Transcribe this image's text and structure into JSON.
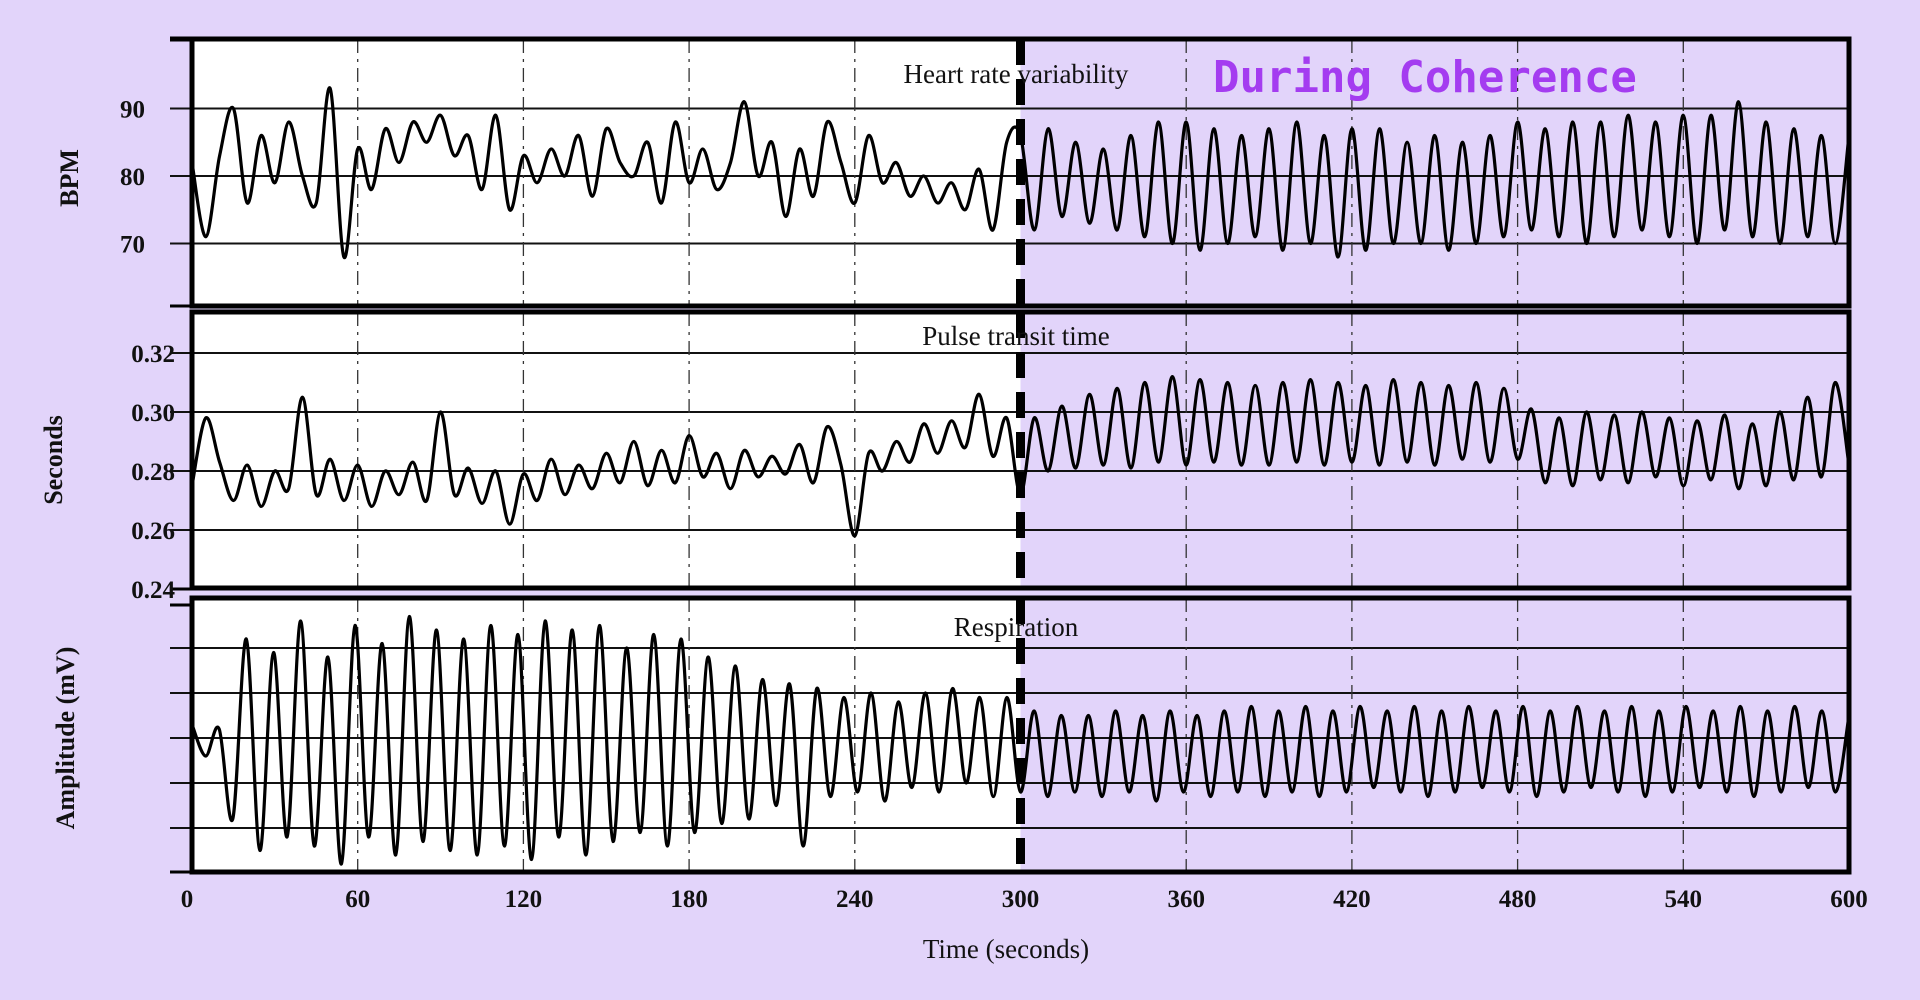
{
  "annotation": {
    "text": "During Coherence",
    "color": "#a43cf0"
  },
  "colors": {
    "background": "#e2d4fa",
    "before_region": "#ffffff",
    "after_region": "#e2d4fa",
    "trace": "#000000"
  },
  "chart_data": [
    {
      "type": "line",
      "title": "Heart rate variability",
      "ylabel": "BPM",
      "xlabel": "Time (seconds)",
      "xlim": [
        0,
        600
      ],
      "ylim": [
        60,
        100
      ],
      "yticks": [
        "70",
        "80",
        "90"
      ],
      "xticks": [
        "0",
        "60",
        "120",
        "180",
        "240",
        "300",
        "360",
        "420",
        "480",
        "540",
        "600"
      ],
      "marker_x": 300,
      "grid": true,
      "values": [
        82,
        71,
        83,
        90,
        76,
        86,
        79,
        88,
        80,
        76,
        93,
        68,
        84,
        78,
        87,
        82,
        88,
        85,
        89,
        83,
        86,
        78,
        89,
        75,
        83,
        79,
        84,
        80,
        86,
        77,
        87,
        82,
        80,
        85,
        76,
        88,
        79,
        84,
        78,
        82,
        91,
        80,
        85,
        74,
        84,
        77,
        88,
        82,
        76,
        86,
        79,
        82,
        77,
        80,
        76,
        79,
        75,
        81,
        72,
        85,
        86,
        72,
        87,
        74,
        85,
        73,
        84,
        72,
        86,
        71,
        88,
        70,
        88,
        69,
        87,
        70,
        86,
        71,
        87,
        69,
        88,
        70,
        86,
        68,
        87,
        69,
        87,
        70,
        85,
        70,
        86,
        69,
        85,
        70,
        86,
        71,
        88,
        72,
        87,
        71,
        88,
        70,
        88,
        71,
        89,
        72,
        88,
        71,
        89,
        70,
        89,
        72,
        91,
        71,
        88,
        70,
        87,
        71,
        86,
        70,
        86
      ]
    },
    {
      "type": "line",
      "title": "Pulse transit time",
      "ylabel": "Seconds",
      "xlim": [
        0,
        600
      ],
      "ylim": [
        0.24,
        0.33
      ],
      "yticks": [
        "0.24",
        "0.26",
        "0.28",
        "0.30",
        "0.32"
      ],
      "marker_x": 300,
      "grid": true,
      "values": [
        0.275,
        0.298,
        0.283,
        0.27,
        0.282,
        0.268,
        0.28,
        0.274,
        0.305,
        0.272,
        0.284,
        0.27,
        0.282,
        0.268,
        0.28,
        0.272,
        0.283,
        0.27,
        0.3,
        0.272,
        0.281,
        0.269,
        0.28,
        0.262,
        0.279,
        0.27,
        0.284,
        0.272,
        0.282,
        0.274,
        0.286,
        0.276,
        0.29,
        0.275,
        0.287,
        0.276,
        0.292,
        0.278,
        0.286,
        0.274,
        0.287,
        0.278,
        0.285,
        0.279,
        0.289,
        0.276,
        0.295,
        0.282,
        0.258,
        0.286,
        0.28,
        0.29,
        0.283,
        0.296,
        0.286,
        0.297,
        0.288,
        0.306,
        0.285,
        0.298,
        0.272,
        0.298,
        0.28,
        0.302,
        0.281,
        0.306,
        0.282,
        0.308,
        0.281,
        0.31,
        0.283,
        0.312,
        0.282,
        0.311,
        0.283,
        0.31,
        0.282,
        0.309,
        0.282,
        0.31,
        0.283,
        0.311,
        0.282,
        0.31,
        0.283,
        0.309,
        0.282,
        0.311,
        0.283,
        0.31,
        0.282,
        0.309,
        0.284,
        0.31,
        0.283,
        0.308,
        0.284,
        0.301,
        0.276,
        0.298,
        0.275,
        0.3,
        0.277,
        0.299,
        0.276,
        0.3,
        0.278,
        0.298,
        0.275,
        0.297,
        0.277,
        0.299,
        0.274,
        0.296,
        0.275,
        0.3,
        0.277,
        0.305,
        0.278,
        0.31,
        0.282
      ]
    },
    {
      "type": "line",
      "title": "Respiration",
      "ylabel": "Amplitude (mV)",
      "xlim": [
        0,
        600
      ],
      "ylim": [
        -3,
        3
      ],
      "marker_x": 300,
      "grid": true,
      "values": [
        0.3,
        -0.4,
        0.2,
        -1.8,
        2.2,
        -2.5,
        1.9,
        -2.2,
        2.6,
        -2.4,
        1.8,
        -2.8,
        2.5,
        -2.2,
        2.1,
        -2.6,
        2.7,
        -2.3,
        2.4,
        -2.5,
        2.2,
        -2.6,
        2.5,
        -2.4,
        2.3,
        -2.7,
        2.6,
        -2.2,
        2.4,
        -2.6,
        2.5,
        -2.3,
        2.0,
        -2.1,
        2.3,
        -2.4,
        2.2,
        -2.1,
        1.8,
        -1.9,
        1.6,
        -1.8,
        1.3,
        -1.5,
        1.2,
        -2.4,
        1.1,
        -1.3,
        0.9,
        -1.2,
        1.0,
        -1.4,
        0.8,
        -1.1,
        1.0,
        -1.2,
        1.1,
        -1.0,
        0.9,
        -1.3,
        0.9,
        -1.2,
        0.6,
        -1.3,
        0.5,
        -1.2,
        0.5,
        -1.3,
        0.6,
        -1.2,
        0.5,
        -1.4,
        0.6,
        -1.2,
        0.5,
        -1.3,
        0.6,
        -1.2,
        0.7,
        -1.3,
        0.6,
        -1.2,
        0.7,
        -1.3,
        0.6,
        -1.2,
        0.7,
        -1.1,
        0.6,
        -1.2,
        0.7,
        -1.3,
        0.6,
        -1.2,
        0.7,
        -1.1,
        0.6,
        -1.2,
        0.7,
        -1.3,
        0.6,
        -1.2,
        0.7,
        -1.1,
        0.6,
        -1.2,
        0.7,
        -1.3,
        0.6,
        -1.2,
        0.7,
        -1.1,
        0.6,
        -1.2,
        0.7,
        -1.3,
        0.6,
        -1.2,
        0.7,
        -1.1,
        0.6,
        -1.2,
        0.5
      ]
    }
  ]
}
